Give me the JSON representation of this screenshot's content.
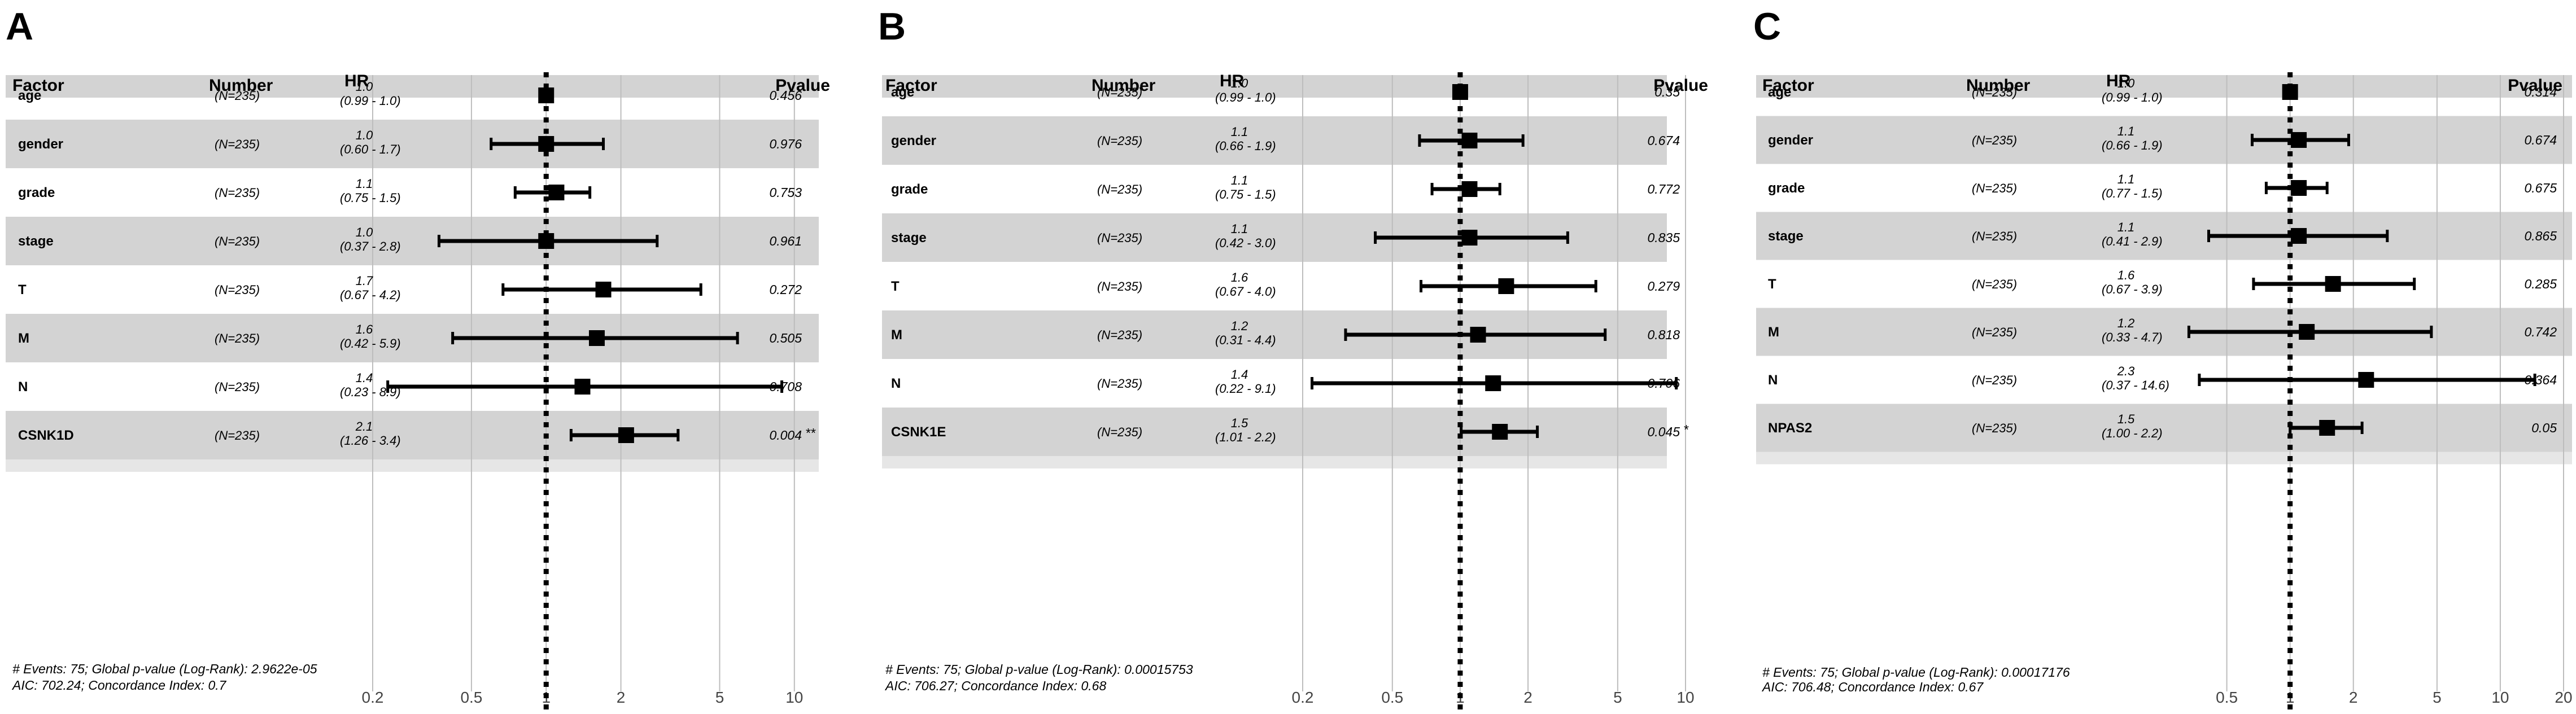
{
  "chart_data": [
    {
      "type": "forest",
      "panel_label": "A",
      "headers": {
        "factor": "Factor",
        "number": "Number",
        "hr": "HR",
        "pvalue": "Pvalue"
      },
      "x_scale": "log",
      "x_ticks": [
        "0.2",
        "0.5",
        "1",
        "2",
        "5",
        "10"
      ],
      "xlim": [
        0.2,
        11
      ],
      "reference_line": 1,
      "rows": [
        {
          "factor": "age",
          "number": "(N=235)",
          "hr": 1.0,
          "hr_label": "1.0",
          "ci": [
            0.99,
            1.0
          ],
          "ci_label": "(0.99 - 1.0)",
          "pvalue": "0.456",
          "stars": ""
        },
        {
          "factor": "gender",
          "number": "(N=235)",
          "hr": 1.0,
          "hr_label": "1.0",
          "ci": [
            0.6,
            1.7
          ],
          "ci_label": "(0.60 - 1.7)",
          "pvalue": "0.976",
          "stars": ""
        },
        {
          "factor": "grade",
          "number": "(N=235)",
          "hr": 1.1,
          "hr_label": "1.1",
          "ci": [
            0.75,
            1.5
          ],
          "ci_label": "(0.75 - 1.5)",
          "pvalue": "0.753",
          "stars": ""
        },
        {
          "factor": "stage",
          "number": "(N=235)",
          "hr": 1.0,
          "hr_label": "1.0",
          "ci": [
            0.37,
            2.8
          ],
          "ci_label": "(0.37 - 2.8)",
          "pvalue": "0.961",
          "stars": ""
        },
        {
          "factor": "T",
          "number": "(N=235)",
          "hr": 1.7,
          "hr_label": "1.7",
          "ci": [
            0.67,
            4.2
          ],
          "ci_label": "(0.67 - 4.2)",
          "pvalue": "0.272",
          "stars": ""
        },
        {
          "factor": "M",
          "number": "(N=235)",
          "hr": 1.6,
          "hr_label": "1.6",
          "ci": [
            0.42,
            5.9
          ],
          "ci_label": "(0.42 - 5.9)",
          "pvalue": "0.505",
          "stars": ""
        },
        {
          "factor": "N",
          "number": "(N=235)",
          "hr": 1.4,
          "hr_label": "1.4",
          "ci": [
            0.23,
            8.9
          ],
          "ci_label": "(0.23 - 8.9)",
          "pvalue": "0.708",
          "stars": ""
        },
        {
          "factor": "CSNK1D",
          "number": "(N=235)",
          "hr": 2.1,
          "hr_label": "2.1",
          "ci": [
            1.26,
            3.4
          ],
          "ci_label": "(1.26 - 3.4)",
          "pvalue": "0.004",
          "stars": "**"
        }
      ],
      "footnote": [
        "# Events: 75; Global p-value (Log-Rank): 2.9622e-05",
        "AIC: 702.24; Concordance Index: 0.7"
      ]
    },
    {
      "type": "forest",
      "panel_label": "B",
      "headers": {
        "factor": "Factor",
        "number": "Number",
        "hr": "HR",
        "pvalue": "Pvalue"
      },
      "x_scale": "log",
      "x_ticks": [
        "0.2",
        "0.5",
        "1",
        "2",
        "5",
        "10"
      ],
      "xlim": [
        0.2,
        10
      ],
      "reference_line": 1,
      "rows": [
        {
          "factor": "age",
          "number": "(N=235)",
          "hr": 1.0,
          "hr_label": "1.0",
          "ci": [
            0.99,
            1.0
          ],
          "ci_label": "(0.99 - 1.0)",
          "pvalue": "0.35",
          "stars": ""
        },
        {
          "factor": "gender",
          "number": "(N=235)",
          "hr": 1.1,
          "hr_label": "1.1",
          "ci": [
            0.66,
            1.9
          ],
          "ci_label": "(0.66 - 1.9)",
          "pvalue": "0.674",
          "stars": ""
        },
        {
          "factor": "grade",
          "number": "(N=235)",
          "hr": 1.1,
          "hr_label": "1.1",
          "ci": [
            0.75,
            1.5
          ],
          "ci_label": "(0.75 - 1.5)",
          "pvalue": "0.772",
          "stars": ""
        },
        {
          "factor": "stage",
          "number": "(N=235)",
          "hr": 1.1,
          "hr_label": "1.1",
          "ci": [
            0.42,
            3.0
          ],
          "ci_label": "(0.42 - 3.0)",
          "pvalue": "0.835",
          "stars": ""
        },
        {
          "factor": "T",
          "number": "(N=235)",
          "hr": 1.6,
          "hr_label": "1.6",
          "ci": [
            0.67,
            4.0
          ],
          "ci_label": "(0.67 - 4.0)",
          "pvalue": "0.279",
          "stars": ""
        },
        {
          "factor": "M",
          "number": "(N=235)",
          "hr": 1.2,
          "hr_label": "1.2",
          "ci": [
            0.31,
            4.4
          ],
          "ci_label": "(0.31 - 4.4)",
          "pvalue": "0.818",
          "stars": ""
        },
        {
          "factor": "N",
          "number": "(N=235)",
          "hr": 1.4,
          "hr_label": "1.4",
          "ci": [
            0.22,
            9.1
          ],
          "ci_label": "(0.22 - 9.1)",
          "pvalue": "0.706",
          "stars": ""
        },
        {
          "factor": "CSNK1E",
          "number": "(N=235)",
          "hr": 1.5,
          "hr_label": "1.5",
          "ci": [
            1.01,
            2.2
          ],
          "ci_label": "(1.01 - 2.2)",
          "pvalue": "0.045",
          "stars": "*"
        }
      ],
      "footnote": [
        "# Events: 75; Global p-value (Log-Rank): 0.00015753",
        "AIC: 706.27; Concordance Index: 0.68"
      ]
    },
    {
      "type": "forest",
      "panel_label": "C",
      "headers": {
        "factor": "Factor",
        "number": "Number",
        "hr": "HR",
        "pvalue": "Pvalue"
      },
      "x_scale": "log",
      "x_ticks": [
        "0.5",
        "1",
        "2",
        "5",
        "10",
        "20"
      ],
      "xlim": [
        0.3,
        20
      ],
      "reference_line": 1,
      "rows": [
        {
          "factor": "age",
          "number": "(N=235)",
          "hr": 1.0,
          "hr_label": "1.0",
          "ci": [
            0.99,
            1.0
          ],
          "ci_label": "(0.99 - 1.0)",
          "pvalue": "0.314",
          "stars": ""
        },
        {
          "factor": "gender",
          "number": "(N=235)",
          "hr": 1.1,
          "hr_label": "1.1",
          "ci": [
            0.66,
            1.9
          ],
          "ci_label": "(0.66 - 1.9)",
          "pvalue": "0.674",
          "stars": ""
        },
        {
          "factor": "grade",
          "number": "(N=235)",
          "hr": 1.1,
          "hr_label": "1.1",
          "ci": [
            0.77,
            1.5
          ],
          "ci_label": "(0.77 - 1.5)",
          "pvalue": "0.675",
          "stars": ""
        },
        {
          "factor": "stage",
          "number": "(N=235)",
          "hr": 1.1,
          "hr_label": "1.1",
          "ci": [
            0.41,
            2.9
          ],
          "ci_label": "(0.41 - 2.9)",
          "pvalue": "0.865",
          "stars": ""
        },
        {
          "factor": "T",
          "number": "(N=235)",
          "hr": 1.6,
          "hr_label": "1.6",
          "ci": [
            0.67,
            3.9
          ],
          "ci_label": "(0.67 - 3.9)",
          "pvalue": "0.285",
          "stars": ""
        },
        {
          "factor": "M",
          "number": "(N=235)",
          "hr": 1.2,
          "hr_label": "1.2",
          "ci": [
            0.33,
            4.7
          ],
          "ci_label": "(0.33 - 4.7)",
          "pvalue": "0.742",
          "stars": ""
        },
        {
          "factor": "N",
          "number": "(N=235)",
          "hr": 2.3,
          "hr_label": "2.3",
          "ci": [
            0.37,
            14.6
          ],
          "ci_label": "(0.37 - 14.6)",
          "pvalue": "0.364",
          "stars": ""
        },
        {
          "factor": "NPAS2",
          "number": "(N=235)",
          "hr": 1.5,
          "hr_label": "1.5",
          "ci": [
            1.0,
            2.2
          ],
          "ci_label": "(1.00 - 2.2)",
          "pvalue": "0.05",
          "stars": ""
        }
      ],
      "footnote": [
        "# Events: 75; Global p-value (Log-Rank): 0.00017176",
        "AIC: 706.48; Concordance Index: 0.67"
      ]
    }
  ],
  "colors": {
    "band": "#d3d3d3",
    "header_band": "#d3d3d3",
    "grid": "#bdbdbd",
    "marks": "#000000"
  }
}
